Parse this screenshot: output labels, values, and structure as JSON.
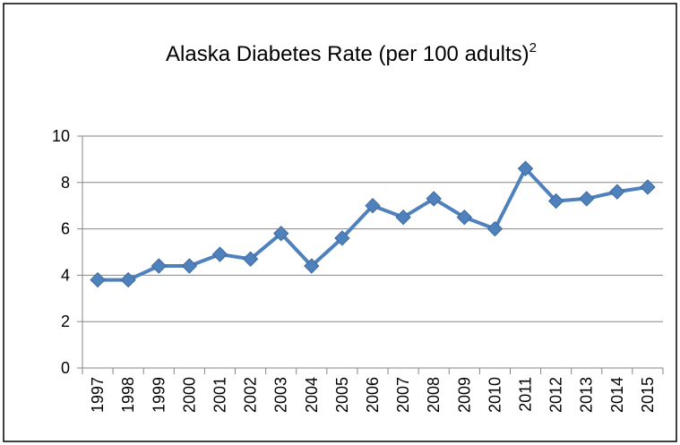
{
  "chart_data": {
    "type": "line",
    "title": "Alaska Diabetes Rate (per 100 adults)",
    "title_superscript": "2",
    "categories": [
      "1997",
      "1998",
      "1999",
      "2000",
      "2001",
      "2002",
      "2003",
      "2004",
      "2005",
      "2006",
      "2007",
      "2008",
      "2009",
      "2010",
      "2011",
      "2012",
      "2013",
      "2014",
      "2015"
    ],
    "values": [
      3.8,
      3.8,
      4.4,
      4.4,
      4.9,
      4.7,
      5.8,
      4.4,
      5.6,
      7.0,
      6.5,
      7.3,
      6.5,
      6.0,
      8.6,
      7.2,
      7.3,
      7.6,
      7.8
    ],
    "color": "#4f81bd",
    "ylim": [
      0,
      10
    ],
    "yticks": [
      0,
      2,
      4,
      6,
      8,
      10
    ],
    "grid": true
  }
}
